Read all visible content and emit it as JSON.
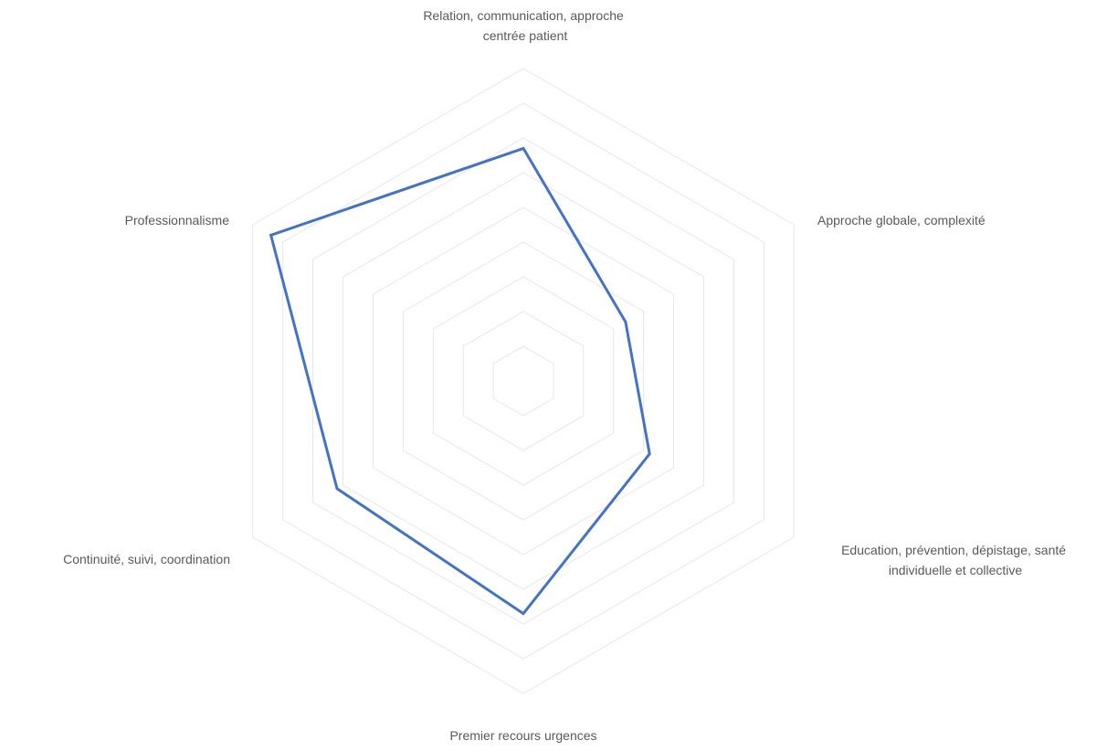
{
  "chart_data": {
    "type": "radar",
    "title": "",
    "axes": [
      [
        "Relation, communication, approche",
        "centrée patient"
      ],
      [
        "Approche globale, complexité"
      ],
      [
        "Education, prévention, dépistage, santé",
        "individuelle et collective"
      ],
      [
        "Premier recours urgences"
      ],
      [
        "Continuité, suivi, coordination"
      ],
      [
        "Professionnalisme"
      ]
    ],
    "grid_levels": 9,
    "max": 9,
    "grid": true,
    "tick_labels_shown": false,
    "legend": "none",
    "series": [
      {
        "color": "#4472c4",
        "values": [
          6.7,
          3.4,
          4.2,
          6.7,
          6.2,
          8.4
        ]
      }
    ]
  }
}
